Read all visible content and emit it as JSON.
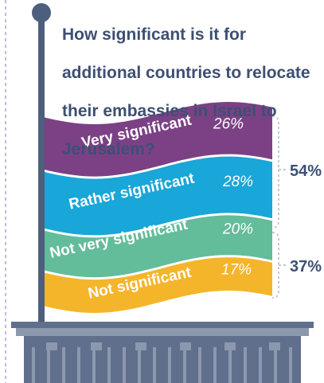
{
  "question": "How significant is it for additional countries to relocate their embassies in Israel to Jerusalem?",
  "question_lines": [
    "How significant is it for",
    "additional countries to relocate",
    "their embassies in Israel to",
    "Jerusalem?"
  ],
  "colors": {
    "very_significant": "#7b4184",
    "rather_significant": "#19a6d8",
    "not_very_significant": "#63bc9a",
    "not_significant": "#f5b52b",
    "text_dark": "#3d4f73",
    "pole": "#4d5f7c",
    "building": "#5f6f8c",
    "bracket": "#c3c8d2"
  },
  "chart_data": {
    "type": "bar",
    "title": "How significant is it for additional countries to relocate their embassies in Israel to Jerusalem?",
    "categories": [
      "Very significant",
      "Rather significant",
      "Not very significant",
      "Not significant"
    ],
    "values": [
      26,
      28,
      20,
      17
    ],
    "value_labels": [
      "26%",
      "28%",
      "20%",
      "17%"
    ],
    "groups": [
      {
        "label": "54%",
        "value": 54,
        "members": [
          "Very significant",
          "Rather significant"
        ]
      },
      {
        "label": "37%",
        "value": 37,
        "members": [
          "Not very significant",
          "Not significant"
        ]
      }
    ]
  }
}
